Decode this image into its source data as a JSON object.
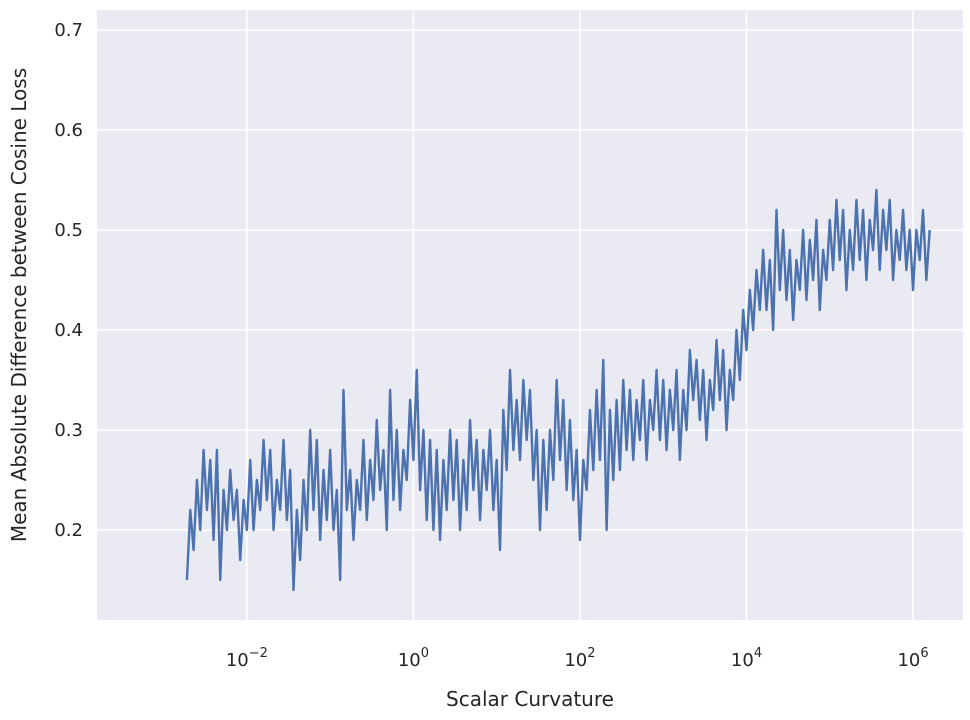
{
  "chart_data": {
    "type": "line",
    "title": "",
    "xlabel": "Scalar Curvature",
    "ylabel": "Mean Absolute Difference between Cosine Loss",
    "xscale": "log",
    "xlim_log10": [
      -3.8,
      6.6
    ],
    "ylim": [
      0.11,
      0.72
    ],
    "xticks": [
      {
        "base": "10",
        "exp": "−2",
        "log10": -2
      },
      {
        "base": "10",
        "exp": "0",
        "log10": 0
      },
      {
        "base": "10",
        "exp": "2",
        "log10": 2
      },
      {
        "base": "10",
        "exp": "4",
        "log10": 4
      },
      {
        "base": "10",
        "exp": "6",
        "log10": 6
      }
    ],
    "yticks": [
      {
        "label": "0.2",
        "value": 0.2
      },
      {
        "label": "0.3",
        "value": 0.3
      },
      {
        "label": "0.4",
        "value": 0.4
      },
      {
        "label": "0.5",
        "value": 0.5
      },
      {
        "label": "0.6",
        "value": 0.6
      },
      {
        "label": "0.7",
        "value": 0.7
      }
    ],
    "grid": true,
    "legend": "none",
    "colors": {
      "background": "#eaeaf2",
      "grid": "#ffffff",
      "line": "#4c72b0",
      "text": "#262626"
    },
    "series": [
      {
        "points_log10x": [
          [
            -2.72,
            0.15
          ],
          [
            -2.68,
            0.22
          ],
          [
            -2.64,
            0.18
          ],
          [
            -2.6,
            0.25
          ],
          [
            -2.56,
            0.2
          ],
          [
            -2.52,
            0.28
          ],
          [
            -2.48,
            0.22
          ],
          [
            -2.44,
            0.27
          ],
          [
            -2.4,
            0.19
          ],
          [
            -2.36,
            0.28
          ],
          [
            -2.32,
            0.15
          ],
          [
            -2.28,
            0.24
          ],
          [
            -2.24,
            0.2
          ],
          [
            -2.2,
            0.26
          ],
          [
            -2.16,
            0.21
          ],
          [
            -2.12,
            0.24
          ],
          [
            -2.08,
            0.17
          ],
          [
            -2.04,
            0.23
          ],
          [
            -2.0,
            0.2
          ],
          [
            -1.96,
            0.27
          ],
          [
            -1.92,
            0.2
          ],
          [
            -1.88,
            0.25
          ],
          [
            -1.84,
            0.22
          ],
          [
            -1.8,
            0.29
          ],
          [
            -1.76,
            0.23
          ],
          [
            -1.72,
            0.28
          ],
          [
            -1.68,
            0.2
          ],
          [
            -1.64,
            0.25
          ],
          [
            -1.6,
            0.22
          ],
          [
            -1.56,
            0.29
          ],
          [
            -1.52,
            0.21
          ],
          [
            -1.48,
            0.26
          ],
          [
            -1.44,
            0.14
          ],
          [
            -1.4,
            0.22
          ],
          [
            -1.36,
            0.17
          ],
          [
            -1.32,
            0.25
          ],
          [
            -1.28,
            0.2
          ],
          [
            -1.24,
            0.3
          ],
          [
            -1.2,
            0.22
          ],
          [
            -1.16,
            0.29
          ],
          [
            -1.12,
            0.19
          ],
          [
            -1.08,
            0.26
          ],
          [
            -1.04,
            0.21
          ],
          [
            -1.0,
            0.28
          ],
          [
            -0.96,
            0.2
          ],
          [
            -0.92,
            0.24
          ],
          [
            -0.88,
            0.15
          ],
          [
            -0.84,
            0.34
          ],
          [
            -0.8,
            0.22
          ],
          [
            -0.76,
            0.26
          ],
          [
            -0.72,
            0.19
          ],
          [
            -0.68,
            0.25
          ],
          [
            -0.64,
            0.22
          ],
          [
            -0.6,
            0.29
          ],
          [
            -0.56,
            0.21
          ],
          [
            -0.52,
            0.27
          ],
          [
            -0.48,
            0.23
          ],
          [
            -0.44,
            0.31
          ],
          [
            -0.4,
            0.24
          ],
          [
            -0.36,
            0.28
          ],
          [
            -0.32,
            0.2
          ],
          [
            -0.28,
            0.34
          ],
          [
            -0.24,
            0.23
          ],
          [
            -0.2,
            0.3
          ],
          [
            -0.16,
            0.22
          ],
          [
            -0.12,
            0.28
          ],
          [
            -0.08,
            0.25
          ],
          [
            -0.04,
            0.33
          ],
          [
            0.0,
            0.27
          ],
          [
            0.04,
            0.36
          ],
          [
            0.08,
            0.24
          ],
          [
            0.12,
            0.3
          ],
          [
            0.16,
            0.21
          ],
          [
            0.2,
            0.29
          ],
          [
            0.24,
            0.2
          ],
          [
            0.28,
            0.28
          ],
          [
            0.32,
            0.19
          ],
          [
            0.36,
            0.27
          ],
          [
            0.4,
            0.22
          ],
          [
            0.44,
            0.3
          ],
          [
            0.48,
            0.23
          ],
          [
            0.52,
            0.29
          ],
          [
            0.56,
            0.2
          ],
          [
            0.6,
            0.27
          ],
          [
            0.64,
            0.22
          ],
          [
            0.68,
            0.31
          ],
          [
            0.72,
            0.24
          ],
          [
            0.76,
            0.29
          ],
          [
            0.8,
            0.21
          ],
          [
            0.84,
            0.28
          ],
          [
            0.88,
            0.24
          ],
          [
            0.92,
            0.3
          ],
          [
            0.96,
            0.22
          ],
          [
            1.0,
            0.27
          ],
          [
            1.04,
            0.18
          ],
          [
            1.08,
            0.32
          ],
          [
            1.12,
            0.26
          ],
          [
            1.16,
            0.36
          ],
          [
            1.2,
            0.28
          ],
          [
            1.24,
            0.33
          ],
          [
            1.28,
            0.27
          ],
          [
            1.32,
            0.35
          ],
          [
            1.36,
            0.29
          ],
          [
            1.4,
            0.34
          ],
          [
            1.44,
            0.25
          ],
          [
            1.48,
            0.3
          ],
          [
            1.52,
            0.2
          ],
          [
            1.56,
            0.29
          ],
          [
            1.6,
            0.22
          ],
          [
            1.64,
            0.3
          ],
          [
            1.68,
            0.25
          ],
          [
            1.72,
            0.35
          ],
          [
            1.76,
            0.27
          ],
          [
            1.8,
            0.33
          ],
          [
            1.84,
            0.24
          ],
          [
            1.88,
            0.31
          ],
          [
            1.92,
            0.23
          ],
          [
            1.96,
            0.28
          ],
          [
            2.0,
            0.19
          ],
          [
            2.04,
            0.27
          ],
          [
            2.08,
            0.24
          ],
          [
            2.12,
            0.32
          ],
          [
            2.16,
            0.26
          ],
          [
            2.2,
            0.34
          ],
          [
            2.24,
            0.27
          ],
          [
            2.28,
            0.37
          ],
          [
            2.32,
            0.2
          ],
          [
            2.36,
            0.32
          ],
          [
            2.4,
            0.25
          ],
          [
            2.44,
            0.33
          ],
          [
            2.48,
            0.26
          ],
          [
            2.52,
            0.35
          ],
          [
            2.56,
            0.28
          ],
          [
            2.6,
            0.34
          ],
          [
            2.64,
            0.27
          ],
          [
            2.68,
            0.33
          ],
          [
            2.72,
            0.29
          ],
          [
            2.76,
            0.35
          ],
          [
            2.8,
            0.27
          ],
          [
            2.84,
            0.33
          ],
          [
            2.88,
            0.3
          ],
          [
            2.92,
            0.36
          ],
          [
            2.96,
            0.29
          ],
          [
            3.0,
            0.35
          ],
          [
            3.04,
            0.28
          ],
          [
            3.08,
            0.34
          ],
          [
            3.12,
            0.3
          ],
          [
            3.16,
            0.36
          ],
          [
            3.2,
            0.27
          ],
          [
            3.24,
            0.34
          ],
          [
            3.28,
            0.3
          ],
          [
            3.32,
            0.38
          ],
          [
            3.36,
            0.33
          ],
          [
            3.4,
            0.37
          ],
          [
            3.44,
            0.31
          ],
          [
            3.48,
            0.36
          ],
          [
            3.52,
            0.29
          ],
          [
            3.56,
            0.35
          ],
          [
            3.6,
            0.32
          ],
          [
            3.64,
            0.39
          ],
          [
            3.68,
            0.33
          ],
          [
            3.72,
            0.38
          ],
          [
            3.76,
            0.3
          ],
          [
            3.8,
            0.36
          ],
          [
            3.84,
            0.33
          ],
          [
            3.88,
            0.4
          ],
          [
            3.92,
            0.35
          ],
          [
            3.96,
            0.42
          ],
          [
            4.0,
            0.38
          ],
          [
            4.04,
            0.44
          ],
          [
            4.08,
            0.4
          ],
          [
            4.12,
            0.46
          ],
          [
            4.16,
            0.42
          ],
          [
            4.2,
            0.48
          ],
          [
            4.24,
            0.42
          ],
          [
            4.28,
            0.47
          ],
          [
            4.32,
            0.4
          ],
          [
            4.36,
            0.52
          ],
          [
            4.4,
            0.44
          ],
          [
            4.44,
            0.5
          ],
          [
            4.48,
            0.43
          ],
          [
            4.52,
            0.48
          ],
          [
            4.56,
            0.41
          ],
          [
            4.6,
            0.47
          ],
          [
            4.64,
            0.44
          ],
          [
            4.68,
            0.5
          ],
          [
            4.72,
            0.43
          ],
          [
            4.76,
            0.49
          ],
          [
            4.8,
            0.45
          ],
          [
            4.84,
            0.51
          ],
          [
            4.88,
            0.42
          ],
          [
            4.92,
            0.48
          ],
          [
            4.96,
            0.45
          ],
          [
            5.0,
            0.51
          ],
          [
            5.04,
            0.46
          ],
          [
            5.08,
            0.53
          ],
          [
            5.12,
            0.47
          ],
          [
            5.16,
            0.52
          ],
          [
            5.2,
            0.44
          ],
          [
            5.24,
            0.5
          ],
          [
            5.28,
            0.46
          ],
          [
            5.32,
            0.53
          ],
          [
            5.36,
            0.47
          ],
          [
            5.4,
            0.52
          ],
          [
            5.44,
            0.45
          ],
          [
            5.48,
            0.51
          ],
          [
            5.52,
            0.48
          ],
          [
            5.56,
            0.54
          ],
          [
            5.6,
            0.46
          ],
          [
            5.64,
            0.52
          ],
          [
            5.68,
            0.48
          ],
          [
            5.72,
            0.53
          ],
          [
            5.76,
            0.45
          ],
          [
            5.8,
            0.5
          ],
          [
            5.84,
            0.47
          ],
          [
            5.88,
            0.52
          ],
          [
            5.92,
            0.46
          ],
          [
            5.96,
            0.5
          ],
          [
            6.0,
            0.44
          ],
          [
            6.04,
            0.5
          ],
          [
            6.08,
            0.47
          ],
          [
            6.12,
            0.52
          ],
          [
            6.16,
            0.45
          ],
          [
            6.2,
            0.5
          ]
        ]
      }
    ]
  }
}
